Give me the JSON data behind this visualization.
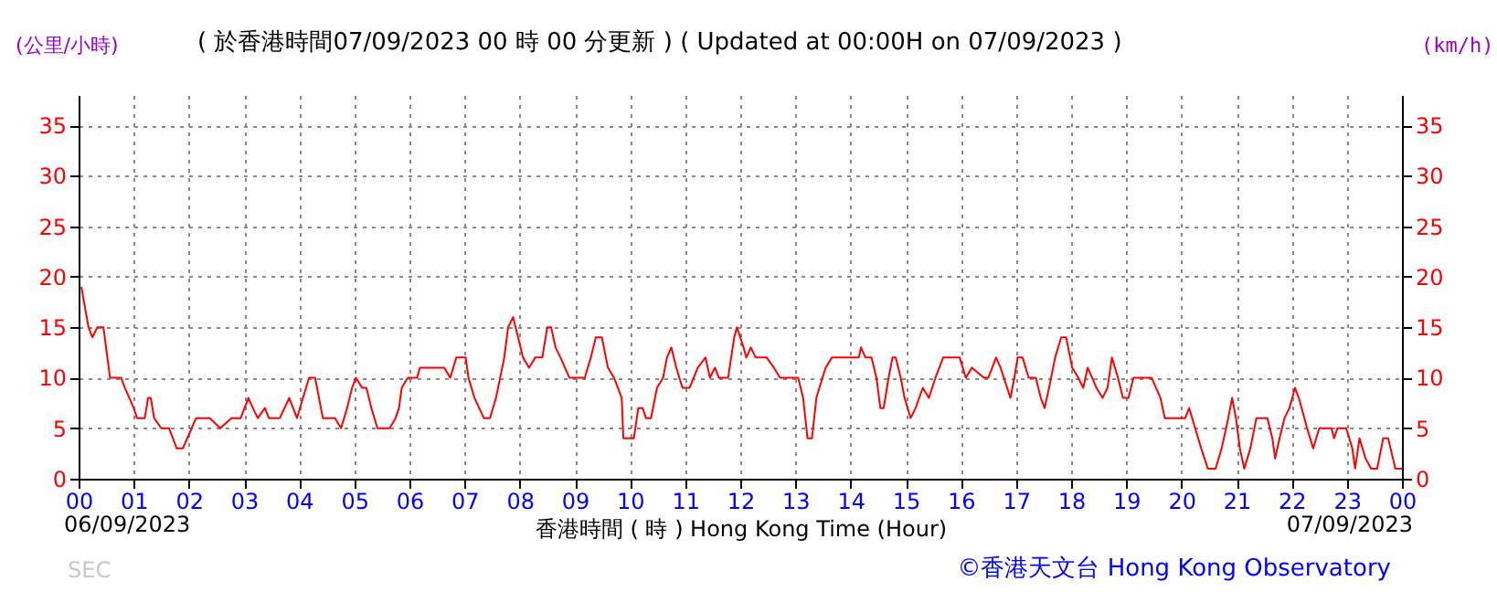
{
  "chart_data": {
    "type": "line",
    "title": "( 於香港時間07/09/2023 00 時 00 分更新 ) ( Updated at 00:00H on 07/09/2023 )",
    "xlabel": "香港時間 ( 時 ) Hong Kong Time (Hour)",
    "ylabel": "(公里/小時)",
    "y2label": "(km/h)",
    "annotations": [
      "06/09/2023",
      "07/09/2023",
      "SEC",
      "©香港天文台 Hong Kong Observatory"
    ],
    "xlim": [
      0,
      24
    ],
    "xticks": [
      {
        "value": 0,
        "label": "00"
      },
      {
        "value": 1,
        "label": "01"
      },
      {
        "value": 2,
        "label": "02"
      },
      {
        "value": 3,
        "label": "03"
      },
      {
        "value": 4,
        "label": "04"
      },
      {
        "value": 5,
        "label": "05"
      },
      {
        "value": 6,
        "label": "06"
      },
      {
        "value": 7,
        "label": "07"
      },
      {
        "value": 8,
        "label": "08"
      },
      {
        "value": 9,
        "label": "09"
      },
      {
        "value": 10,
        "label": "10"
      },
      {
        "value": 11,
        "label": "11"
      },
      {
        "value": 12,
        "label": "12"
      },
      {
        "value": 13,
        "label": "13"
      },
      {
        "value": 14,
        "label": "14"
      },
      {
        "value": 15,
        "label": "15"
      },
      {
        "value": 16,
        "label": "16"
      },
      {
        "value": 17,
        "label": "17"
      },
      {
        "value": 18,
        "label": "18"
      },
      {
        "value": 19,
        "label": "19"
      },
      {
        "value": 20,
        "label": "20"
      },
      {
        "value": 21,
        "label": "21"
      },
      {
        "value": 22,
        "label": "22"
      },
      {
        "value": 23,
        "label": "23"
      },
      {
        "value": 24,
        "label": "00"
      }
    ],
    "ylim": [
      0,
      38
    ],
    "yticks": [
      0,
      5,
      10,
      15,
      20,
      25,
      30,
      35
    ],
    "y2lim": [
      0,
      38
    ],
    "y2ticks": [
      0,
      5,
      10,
      15,
      20,
      25,
      30,
      35
    ],
    "grid": true,
    "line_style": "solid",
    "series": [
      {
        "color": "#ff0000",
        "x": [
          0.05,
          0.18,
          0.25,
          0.34,
          0.45,
          0.57,
          0.77,
          0.84,
          1.0,
          1.06,
          1.2,
          1.26,
          1.31,
          1.37,
          1.5,
          1.64,
          1.78,
          1.89,
          2.05,
          2.13,
          2.38,
          2.57,
          2.77,
          2.94,
          3.08,
          3.16,
          3.25,
          3.38,
          3.45,
          3.65,
          3.82,
          3.96,
          4.07,
          4.18,
          4.29,
          4.43,
          4.65,
          4.76,
          4.87,
          4.96,
          5.03,
          5.14,
          5.22,
          5.31,
          5.42,
          5.64,
          5.75,
          5.81,
          5.86,
          5.97,
          6.14,
          6.19,
          6.63,
          6.74,
          6.85,
          7.02,
          7.07,
          7.18,
          7.35,
          7.46,
          7.57,
          7.72,
          7.79,
          7.88,
          7.97,
          8.06,
          8.17,
          8.28,
          8.41,
          8.5,
          8.57,
          8.65,
          8.74,
          8.9,
          9.18,
          9.29,
          9.38,
          9.49,
          9.6,
          9.71,
          9.85,
          9.88,
          10.07,
          10.15,
          10.23,
          10.29,
          10.38,
          10.49,
          10.6,
          10.67,
          10.75,
          10.84,
          10.95,
          11.08,
          11.23,
          11.37,
          11.45,
          11.54,
          11.61,
          11.78,
          11.89,
          11.94,
          12.06,
          12.11,
          12.19,
          12.28,
          12.48,
          12.61,
          12.72,
          13.05,
          13.14,
          13.22,
          13.3,
          13.38,
          13.49,
          13.55,
          13.66,
          14.15,
          14.19,
          14.27,
          14.38,
          14.47,
          14.54,
          14.6,
          14.69,
          14.76,
          14.82,
          14.91,
          14.98,
          15.09,
          15.18,
          15.31,
          15.42,
          15.54,
          15.68,
          15.98,
          16.09,
          16.2,
          16.42,
          16.5,
          16.64,
          16.72,
          16.78,
          16.9,
          16.97,
          17.03,
          17.12,
          17.23,
          17.36,
          17.45,
          17.52,
          17.6,
          17.71,
          17.82,
          17.91,
          18.02,
          18.13,
          18.22,
          18.3,
          18.38,
          18.46,
          18.57,
          18.66,
          18.74,
          18.85,
          18.94,
          19.04,
          19.13,
          19.46,
          19.62,
          19.7,
          20.07,
          20.14,
          20.25,
          20.36,
          20.48,
          20.62,
          20.73,
          20.85,
          20.92,
          20.99,
          21.06,
          21.14,
          21.25,
          21.36,
          21.56,
          21.65,
          21.7,
          21.78,
          21.87,
          21.96,
          22.06,
          22.13,
          22.28,
          22.39,
          22.5,
          22.72,
          22.77,
          22.83,
          22.99,
          23.1,
          23.15,
          23.23,
          23.34,
          23.44,
          23.55,
          23.66,
          23.75,
          23.88,
          24.0
        ],
        "values": [
          19,
          15,
          14,
          15,
          15,
          10,
          10,
          9,
          7,
          6,
          6,
          8,
          8,
          6,
          5,
          5,
          3,
          3,
          5,
          6,
          6,
          5,
          6,
          6,
          8,
          7,
          6,
          7,
          6,
          6,
          8,
          6,
          8,
          10,
          10,
          6,
          6,
          5,
          7,
          9,
          10,
          9,
          9,
          7,
          5,
          5,
          6,
          7,
          9,
          10,
          10,
          11,
          11,
          10,
          12,
          12,
          10,
          8,
          6,
          6,
          8,
          12,
          15,
          16,
          14,
          12,
          11,
          12,
          12,
          15,
          15,
          13,
          12,
          10,
          10,
          12,
          14,
          14,
          11,
          10,
          8,
          4,
          4,
          7,
          7,
          6,
          6,
          9,
          10,
          12,
          13,
          11,
          9,
          9,
          11,
          12,
          10,
          11,
          10,
          10,
          14,
          15,
          13,
          12,
          13,
          12,
          12,
          11,
          10,
          10,
          8,
          4,
          4,
          8,
          10,
          11,
          12,
          12,
          13,
          12,
          12,
          10,
          7,
          7,
          10,
          12,
          12,
          10,
          8,
          6,
          7,
          9,
          8,
          10,
          12,
          12,
          10,
          11,
          10,
          10,
          12,
          11,
          10,
          8,
          10,
          12,
          12,
          10,
          10,
          8,
          7,
          9,
          12,
          14,
          14,
          11,
          10,
          9,
          11,
          10,
          9,
          8,
          9,
          12,
          10,
          8,
          8,
          10,
          10,
          8,
          6,
          6,
          7,
          5,
          3,
          1,
          1,
          3,
          6,
          8,
          6,
          3,
          1,
          3,
          6,
          6,
          4,
          2,
          4,
          6,
          7,
          9,
          8,
          5,
          3,
          5,
          5,
          4,
          5,
          5,
          3,
          1,
          4,
          2,
          1,
          1,
          4,
          4,
          1,
          1
        ]
      }
    ]
  }
}
